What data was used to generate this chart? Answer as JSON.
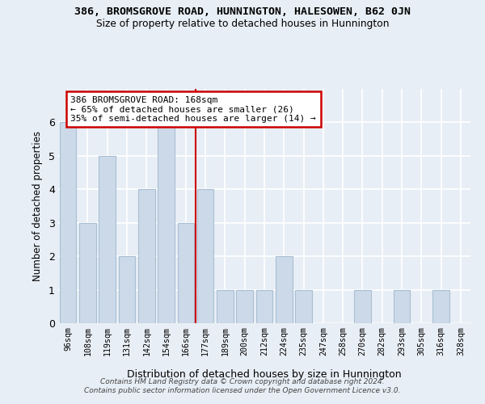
{
  "title_line1": "386, BROMSGROVE ROAD, HUNNINGTON, HALESOWEN, B62 0JN",
  "title_line2": "Size of property relative to detached houses in Hunnington",
  "xlabel": "Distribution of detached houses by size in Hunnington",
  "ylabel": "Number of detached properties",
  "categories": [
    "96sqm",
    "108sqm",
    "119sqm",
    "131sqm",
    "142sqm",
    "154sqm",
    "166sqm",
    "177sqm",
    "189sqm",
    "200sqm",
    "212sqm",
    "224sqm",
    "235sqm",
    "247sqm",
    "258sqm",
    "270sqm",
    "282sqm",
    "293sqm",
    "305sqm",
    "316sqm",
    "328sqm"
  ],
  "values": [
    6,
    3,
    5,
    2,
    4,
    6,
    3,
    4,
    1,
    1,
    1,
    2,
    1,
    0,
    0,
    1,
    0,
    1,
    0,
    1,
    0
  ],
  "highlight_index": 6,
  "bar_color": "#ccd9e8",
  "bar_edge_color": "#a8bfd4",
  "highlight_line_color": "#cc0000",
  "annotation_text": "386 BROMSGROVE ROAD: 168sqm\n← 65% of detached houses are smaller (26)\n35% of semi-detached houses are larger (14) →",
  "annotation_box_color": "#ffffff",
  "annotation_box_edge": "#cc0000",
  "footer_text": "Contains HM Land Registry data © Crown copyright and database right 2024.\nContains public sector information licensed under the Open Government Licence v3.0.",
  "ylim": [
    0,
    7
  ],
  "yticks": [
    0,
    1,
    2,
    3,
    4,
    5,
    6
  ],
  "background_color": "#e8eef5",
  "grid_color": "#ffffff"
}
